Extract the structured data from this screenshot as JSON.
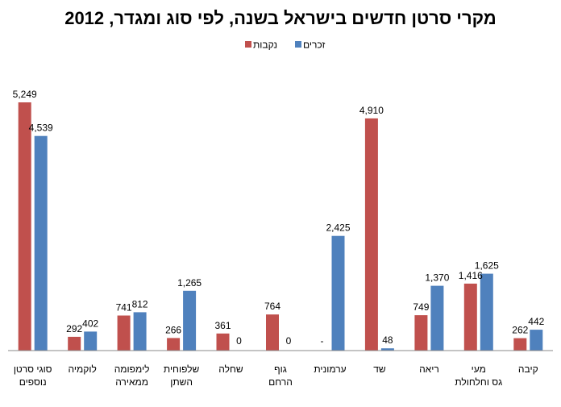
{
  "chart_data": {
    "type": "bar",
    "title": "מקרי סרטן חדשים בישראל בשנה, לפי סוג ומגדר, 2012",
    "xlabel": "",
    "ylabel": "",
    "ylim": [
      0,
      5400
    ],
    "grid": false,
    "legend_position": "top-center",
    "categories": [
      [
        "סוגי סרטן",
        "נוספים"
      ],
      [
        "לוקמיה"
      ],
      [
        "לימפומה",
        "ממאירה"
      ],
      [
        "שלפוחית",
        "השתן"
      ],
      [
        "שחלה"
      ],
      [
        "גוף",
        "הרחם"
      ],
      [
        "ערמונית"
      ],
      [
        "שד"
      ],
      [
        "ריאה"
      ],
      [
        "מעי",
        "גס וחלחולת"
      ],
      [
        "קיבה"
      ]
    ],
    "series": [
      {
        "name": "נקבות",
        "color": "#c0504d",
        "values": [
          5249,
          292,
          741,
          266,
          361,
          764,
          null,
          4910,
          749,
          1416,
          262
        ],
        "labels": [
          "5,249",
          "292",
          "741",
          "266",
          "361",
          "764",
          "-",
          "4,910",
          "749",
          "1,416",
          "262"
        ]
      },
      {
        "name": "זכרים",
        "color": "#4f81bd",
        "values": [
          4539,
          402,
          812,
          1265,
          0,
          0,
          2425,
          48,
          1370,
          1625,
          442
        ],
        "labels": [
          "4,539",
          "402",
          "812",
          "1,265",
          "0",
          "0",
          "2,425",
          "48",
          "1,370",
          "1,625",
          "442"
        ]
      }
    ]
  }
}
